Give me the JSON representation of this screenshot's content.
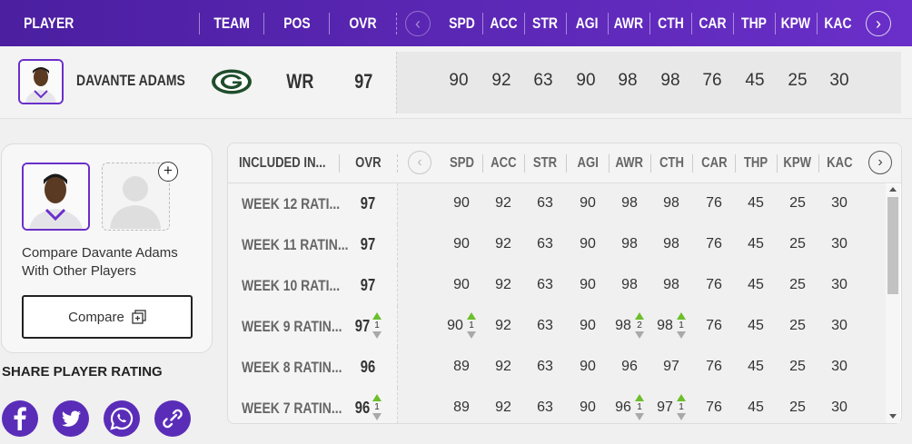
{
  "header": {
    "player": "PLAYER",
    "team": "TEAM",
    "pos": "POS",
    "ovr": "OVR",
    "prev": "‹",
    "next": "›",
    "stats": [
      "SPD",
      "ACC",
      "STR",
      "AGI",
      "AWR",
      "CTH",
      "CAR",
      "THP",
      "KPW",
      "KAC"
    ]
  },
  "player": {
    "name": "DAVANTE ADAMS",
    "pos": "WR",
    "ovr": "97",
    "stats": [
      "90",
      "92",
      "63",
      "90",
      "98",
      "98",
      "76",
      "45",
      "25",
      "30"
    ]
  },
  "compare": {
    "plus": "+",
    "text": "Compare Davante Adams With Other Players",
    "button": "Compare"
  },
  "share": {
    "title": "SHARE PLAYER RATING",
    "icons": [
      "facebook-icon",
      "twitter-icon",
      "whatsapp-icon",
      "link-icon"
    ]
  },
  "ratings": {
    "header": {
      "included": "INCLUDED IN...",
      "ovr": "OVR",
      "prev": "‹",
      "next": "›",
      "stats": [
        "SPD",
        "ACC",
        "STR",
        "AGI",
        "AWR",
        "CTH",
        "CAR",
        "THP",
        "KPW",
        "KAC"
      ]
    },
    "rows": [
      {
        "label": "WEEK 12 RATI...",
        "ovr": "97",
        "stats": [
          "90",
          "92",
          "63",
          "90",
          "98",
          "98",
          "76",
          "45",
          "25",
          "30"
        ]
      },
      {
        "label": "WEEK 11 RATIN...",
        "ovr": "97",
        "stats": [
          "90",
          "92",
          "63",
          "90",
          "98",
          "98",
          "76",
          "45",
          "25",
          "30"
        ]
      },
      {
        "label": "WEEK 10 RATI...",
        "ovr": "97",
        "stats": [
          "90",
          "92",
          "63",
          "90",
          "98",
          "98",
          "76",
          "45",
          "25",
          "30"
        ]
      },
      {
        "label": "WEEK 9 RATIN...",
        "ovr": "97",
        "ovr_change": "1",
        "stats": [
          "90",
          "92",
          "63",
          "90",
          "98",
          "98",
          "76",
          "45",
          "25",
          "30"
        ],
        "changes": {
          "0": "1",
          "4": "2",
          "5": "1"
        }
      },
      {
        "label": "WEEK 8 RATIN...",
        "ovr": "96",
        "stats": [
          "89",
          "92",
          "63",
          "90",
          "96",
          "97",
          "76",
          "45",
          "25",
          "30"
        ]
      },
      {
        "label": "WEEK 7 RATIN...",
        "ovr": "96",
        "ovr_change": "1",
        "stats": [
          "89",
          "92",
          "63",
          "90",
          "96",
          "97",
          "76",
          "45",
          "25",
          "30"
        ],
        "changes": {
          "4": "1",
          "5": "1"
        }
      }
    ]
  },
  "colors": {
    "brand": "#5a2db8",
    "increase": "#6cbf2a",
    "decrease": "#a9a9a9"
  }
}
